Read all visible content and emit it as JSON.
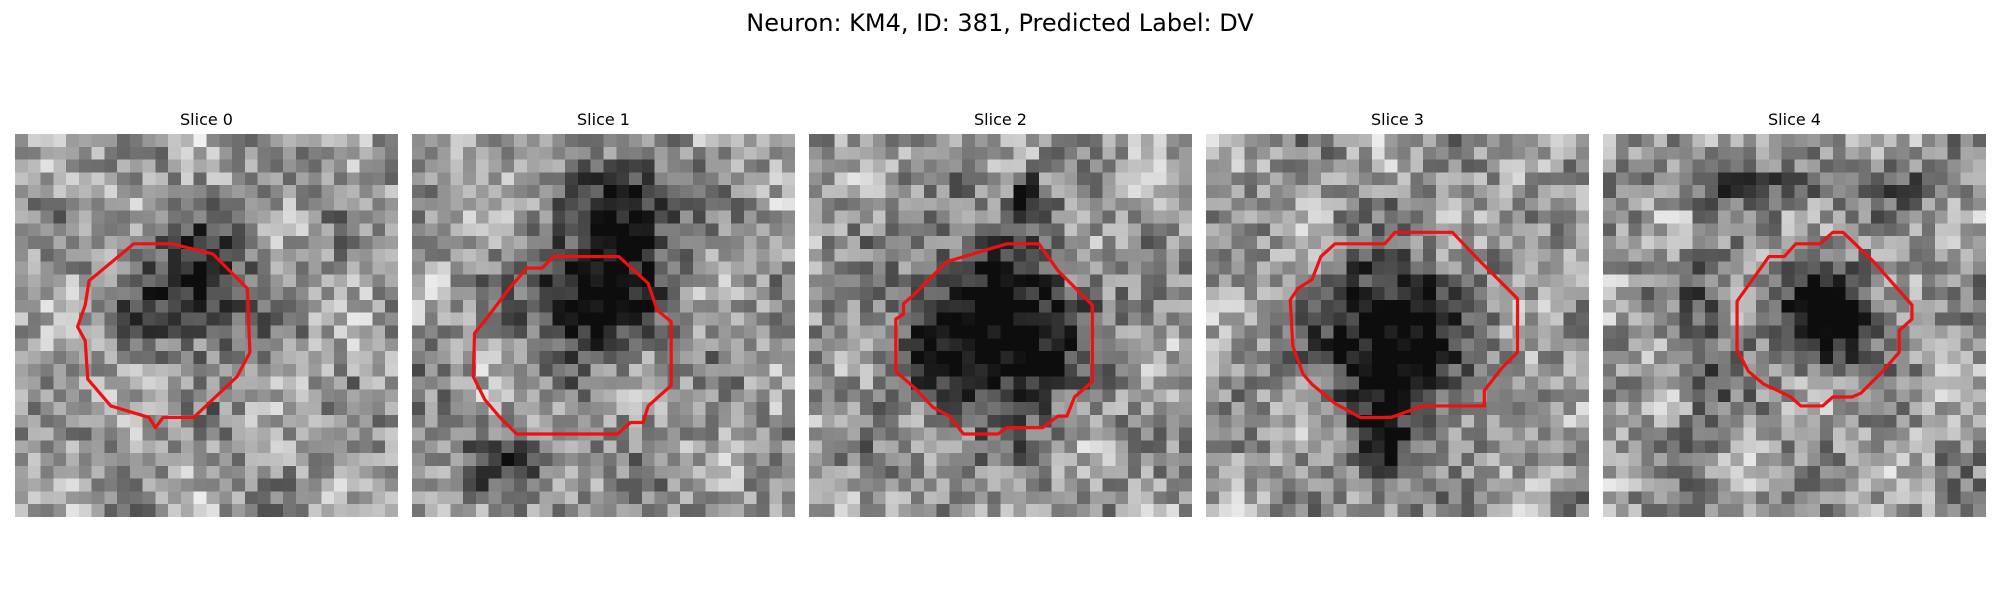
{
  "figure": {
    "title": "Neuron: KM4, ID: 381, Predicted Label: DV",
    "contour_color": "#ee1111",
    "panels": [
      {
        "title": "Slice 0"
      },
      {
        "title": "Slice 1"
      },
      {
        "title": "Slice 2"
      },
      {
        "title": "Slice 3"
      },
      {
        "title": "Slice 4"
      }
    ]
  }
}
